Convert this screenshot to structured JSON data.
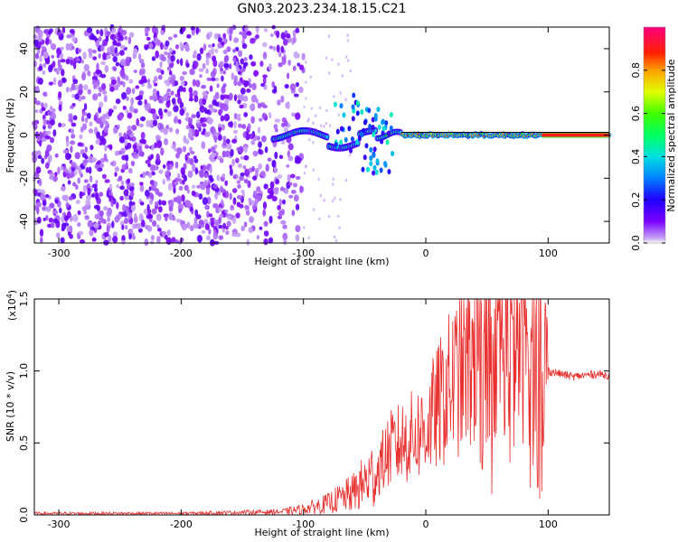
{
  "title": "GN03.2023.234.18.15.C21",
  "colors": {
    "snr_line": "#e8302e",
    "background": "#ffffff",
    "axes": "#000000",
    "ridge": "#000000"
  },
  "chart_data": [
    {
      "type": "heatmap",
      "title": "GN03.2023.234.18.15.C21",
      "xlabel": "Height of straight line (km)",
      "ylabel": "Frequency (Hz)",
      "xlim": [
        -320,
        150
      ],
      "ylim": [
        -50,
        50
      ],
      "xticks": [
        -300,
        -200,
        -100,
        0,
        100
      ],
      "yticks": [
        -40,
        -20,
        0,
        20,
        40
      ],
      "colorbar": {
        "label": "Normalized spectral amplitude",
        "range": [
          0,
          1
        ],
        "ticks": [
          0.0,
          0.2,
          0.4,
          0.6,
          0.8
        ],
        "colormap": "rainbow (purple-blue-cyan-green-yellow-red-magenta)"
      },
      "description_values": {
        "noise_region_x": [
          -320,
          -100
        ],
        "signal_track_frequency_hz": 0,
        "strong_signal_x": [
          -20,
          150
        ]
      }
    },
    {
      "type": "line",
      "xlabel": "Height of straight line (km)",
      "ylabel": "SNR (10 * v/v)",
      "yscale_label": "(x10",
      "yscale_exp": "4",
      "yscale_close": ")",
      "xlim": [
        -320,
        150
      ],
      "ylim": [
        0,
        1.5
      ],
      "xticks": [
        -300,
        -200,
        -100,
        0,
        100
      ],
      "yticks": [
        0.0,
        0.5,
        1.0,
        1.5
      ],
      "series": [
        {
          "values_envelope": {
            "x": [
              -320,
              -200,
              -120,
              -100,
              -80,
              -60,
              -40,
              -30,
              -20,
              -10,
              0,
              10,
              20,
              30,
              40,
              50,
              60,
              70,
              80,
              90,
              95,
              100,
              110,
              120,
              130,
              140,
              150
            ],
            "y": [
              0.01,
              0.01,
              0.02,
              0.04,
              0.08,
              0.15,
              0.3,
              0.45,
              0.5,
              0.55,
              0.6,
              0.75,
              0.9,
              1.0,
              1.1,
              1.2,
              1.3,
              1.25,
              1.2,
              1.15,
              1.05,
              1.0,
              0.98,
              0.96,
              0.97,
              0.98,
              0.97
            ]
          }
        }
      ]
    }
  ]
}
